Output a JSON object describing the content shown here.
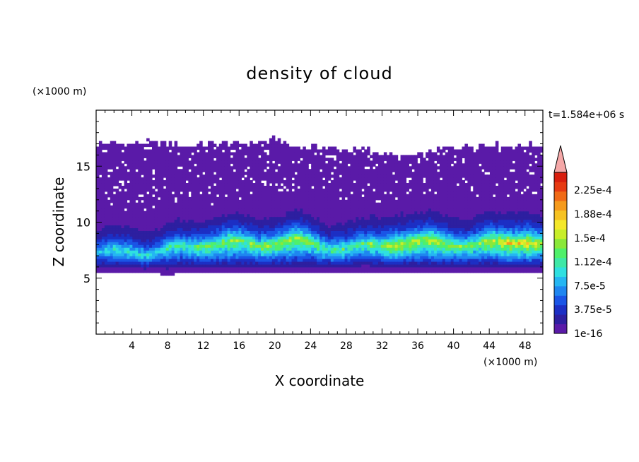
{
  "chart_data": {
    "type": "heatmap",
    "title": "density of cloud",
    "xlabel": "X coordinate",
    "ylabel": "Z coordinate",
    "x_unit": "(×1000 m)",
    "y_unit": "(×1000 m)",
    "time_label": "t=1.584e+06 s",
    "xlim": [
      0,
      50
    ],
    "ylim": [
      0,
      20
    ],
    "x_ticks": [
      "4",
      "8",
      "12",
      "16",
      "20",
      "24",
      "28",
      "32",
      "36",
      "40",
      "44",
      "48"
    ],
    "y_ticks": [
      "5",
      "10",
      "15"
    ],
    "colorbar": {
      "labels": [
        "1e-16",
        "3.75e-5",
        "7.5e-5",
        "1.12e-4",
        "1.5e-4",
        "1.88e-4",
        "2.25e-4"
      ],
      "colors": [
        "#5a1aa8",
        "#2d1fa0",
        "#1c2fc4",
        "#1a55e6",
        "#1f86f0",
        "#25b6f2",
        "#2fe0e0",
        "#3ee8a6",
        "#4ff06a",
        "#8ae83a",
        "#c8ee2a",
        "#f4e82a",
        "#f6c222",
        "#f59a1c",
        "#f06a16",
        "#e63a12",
        "#d81e0e"
      ],
      "over_color": "#f5a8a8"
    },
    "profile": {
      "description": "cloud density band along X",
      "x": [
        0,
        2,
        4,
        6,
        8,
        10,
        12,
        14,
        16,
        18,
        20,
        22,
        24,
        26,
        28,
        30,
        32,
        34,
        36,
        38,
        40,
        42,
        44,
        46,
        48,
        50
      ],
      "cloud_base": [
        5.6,
        5.4,
        5.5,
        5.5,
        5.3,
        5.5,
        5.4,
        5.4,
        5.4,
        5.5,
        5.5,
        5.4,
        5.5,
        5.5,
        5.4,
        5.6,
        5.5,
        5.5,
        5.5,
        5.4,
        5.5,
        5.5,
        5.5,
        5.5,
        5.5,
        5.6
      ],
      "cloud_top": [
        17.0,
        17.1,
        17.0,
        17.2,
        17.0,
        16.8,
        17.0,
        17.0,
        17.1,
        17.0,
        17.4,
        16.8,
        16.7,
        16.6,
        16.5,
        16.5,
        16.2,
        15.8,
        16.0,
        16.4,
        16.7,
        16.8,
        16.9,
        16.8,
        16.9,
        16.9
      ],
      "core_height": [
        7.3,
        7.4,
        7.4,
        7.2,
        7.6,
        7.8,
        8.0,
        8.2,
        8.2,
        8.0,
        8.2,
        8.4,
        8.2,
        7.8,
        7.7,
        7.9,
        8.0,
        8.2,
        8.2,
        8.3,
        8.1,
        7.9,
        8.2,
        8.3,
        8.4,
        7.9
      ],
      "core_value": [
        9e-05,
        9.5e-05,
        0.0001,
        9e-05,
        0.000105,
        0.000115,
        0.00012,
        0.00013,
        0.00013,
        0.000125,
        0.00013,
        0.000135,
        0.00013,
        0.00011,
        0.000105,
        0.00012,
        0.00013,
        0.000145,
        0.00015,
        0.000145,
        0.000135,
        0.00013,
        0.00015,
        0.000165,
        0.00017,
        0.00014
      ]
    }
  }
}
